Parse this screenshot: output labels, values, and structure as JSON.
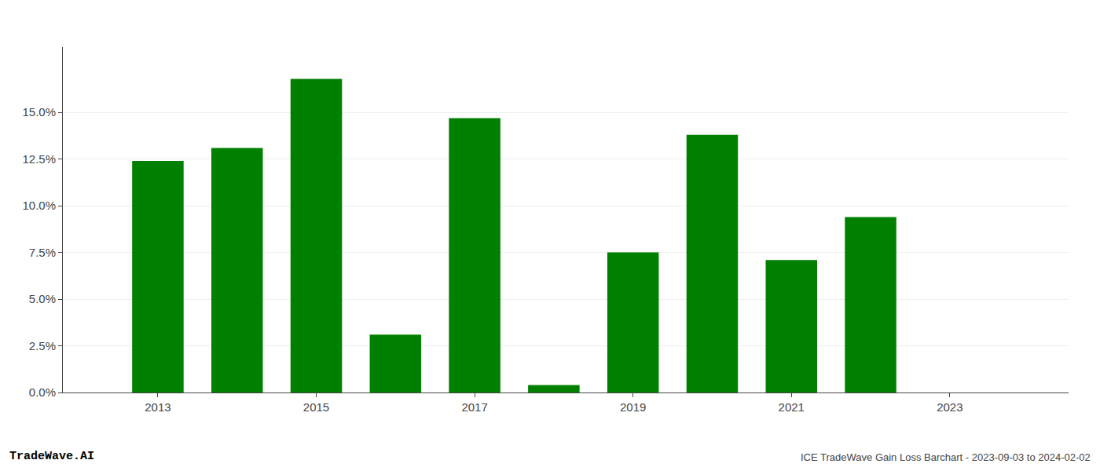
{
  "chart_data": {
    "type": "bar",
    "x": [
      2013,
      2014,
      2015,
      2016,
      2017,
      2018,
      2019,
      2020,
      2021,
      2022,
      2023
    ],
    "values": [
      0.124,
      0.131,
      0.168,
      0.031,
      0.147,
      0.004,
      0.075,
      0.138,
      0.071,
      0.094,
      0.0
    ],
    "color": "#008000",
    "xlim": [
      2011.8,
      2024.5
    ],
    "xticks": [
      2013,
      2015,
      2017,
      2019,
      2021,
      2023
    ],
    "ylim": [
      0.0,
      0.185
    ],
    "yticks": [
      {
        "value": 0.0,
        "label": "0.0%"
      },
      {
        "value": 0.025,
        "label": "2.5%"
      },
      {
        "value": 0.05,
        "label": "5.0%"
      },
      {
        "value": 0.075,
        "label": "7.5%"
      },
      {
        "value": 0.1,
        "label": "10.0%"
      },
      {
        "value": 0.125,
        "label": "12.5%"
      },
      {
        "value": 0.15,
        "label": "15.0%"
      }
    ],
    "grid": true,
    "annotations": [
      "TradeWave.AI",
      "ICE TradeWave Gain Loss Barchart - 2023-09-03 to 2024-02-02"
    ]
  }
}
